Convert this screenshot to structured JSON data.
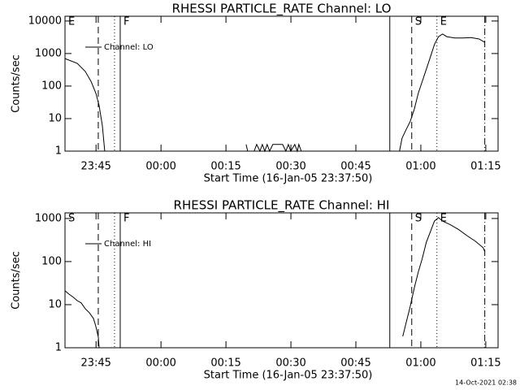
{
  "chart_data": [
    {
      "type": "line",
      "title": "RHESSI PARTICLE_RATE Channel: LO",
      "xlabel": "Start Time (16-Jan-05 23:37:50)",
      "ylabel": "Counts/sec",
      "log_y": true,
      "xlim": [
        0,
        6000
      ],
      "ylim": [
        1,
        14000
      ],
      "yticks": [
        1,
        10,
        100,
        1000,
        10000
      ],
      "xticks": [
        {
          "value": 430,
          "label": "23:45"
        },
        {
          "value": 1330,
          "label": "00:00"
        },
        {
          "value": 2230,
          "label": "00:15"
        },
        {
          "value": 3130,
          "label": "00:30"
        },
        {
          "value": 4030,
          "label": "00:45"
        },
        {
          "value": 4930,
          "label": "01:00"
        },
        {
          "value": 5830,
          "label": "01:15"
        }
      ],
      "x": [
        0,
        169,
        281,
        360,
        428,
        473,
        518,
        551,
        1500,
        2509,
        2531,
        2621,
        2655,
        2700,
        2734,
        2768,
        2801,
        2835,
        2880,
        2925,
        2970,
        3015,
        3060,
        3094,
        3128,
        3184,
        3218,
        3240,
        3274,
        4000,
        4635,
        4669,
        4725,
        4781,
        4838,
        4894,
        4950,
        5006,
        5063,
        5119,
        5175,
        5231,
        5288,
        5400,
        5513,
        5625,
        5738,
        5816
      ],
      "series": [
        {
          "name": "Channel: LO",
          "color": "#000000",
          "values": [
            700,
            500,
            280,
            140,
            60,
            25,
            6,
            1,
            null,
            1.6,
            1,
            1,
            1.6,
            1,
            1.6,
            1,
            1.6,
            1,
            1.6,
            1.6,
            1.6,
            1.6,
            1,
            1.6,
            1,
            1.6,
            1,
            1.6,
            1,
            null,
            1,
            2.5,
            4.5,
            8,
            19,
            60,
            140,
            330,
            800,
            1900,
            3300,
            4000,
            3300,
            3000,
            3000,
            3100,
            2800,
            2200
          ]
        }
      ],
      "markers": [
        {
          "x": 461,
          "style": "dashed"
        },
        {
          "x": 686,
          "style": "dotted"
        },
        {
          "x": 765,
          "style": "solid"
        },
        {
          "x": 4500,
          "style": "solid"
        },
        {
          "x": 4804,
          "style": "dashed"
        },
        {
          "x": 5153,
          "style": "dotted"
        },
        {
          "x": 5816,
          "style": "dashdot"
        }
      ],
      "annotations": [
        {
          "text": "E",
          "x": 0
        },
        {
          "text": "F",
          "x": 765
        },
        {
          "text": "S",
          "x": 4804
        },
        {
          "text": "E",
          "x": 5153
        }
      ]
    },
    {
      "type": "line",
      "title": "RHESSI PARTICLE_RATE Channel: HI",
      "xlabel": "Start Time (16-Jan-05 23:37:50)",
      "ylabel": "Counts/sec",
      "log_y": true,
      "xlim": [
        0,
        6000
      ],
      "ylim": [
        1,
        1350
      ],
      "yticks": [
        1,
        10,
        100,
        1000
      ],
      "xticks": [
        {
          "value": 430,
          "label": "23:45"
        },
        {
          "value": 1330,
          "label": "00:00"
        },
        {
          "value": 2230,
          "label": "00:15"
        },
        {
          "value": 3130,
          "label": "00:30"
        },
        {
          "value": 4030,
          "label": "00:45"
        },
        {
          "value": 4930,
          "label": "01:00"
        },
        {
          "value": 5830,
          "label": "01:15"
        }
      ],
      "x": [
        0,
        56,
        113,
        169,
        225,
        281,
        338,
        394,
        428,
        461,
        473,
        2500,
        4680,
        4725,
        4781,
        4838,
        4894,
        4950,
        5006,
        5063,
        5119,
        5175,
        5231,
        5344,
        5456,
        5569,
        5681,
        5794,
        5816
      ],
      "series": [
        {
          "name": "Channel: HI",
          "color": "#000000",
          "values": [
            21,
            17.5,
            15,
            12.4,
            11,
            8,
            6.5,
            4.8,
            3.1,
            1.76,
            1,
            null,
            1.84,
            3.7,
            8.8,
            24,
            57,
            118,
            280,
            500,
            870,
            1050,
            870,
            710,
            550,
            400,
            300,
            210,
            170
          ]
        }
      ],
      "markers": [
        {
          "x": 461,
          "style": "dashed"
        },
        {
          "x": 686,
          "style": "dotted"
        },
        {
          "x": 765,
          "style": "solid"
        },
        {
          "x": 4500,
          "style": "solid"
        },
        {
          "x": 4804,
          "style": "dashed"
        },
        {
          "x": 5153,
          "style": "dotted"
        },
        {
          "x": 5816,
          "style": "dashdot"
        }
      ],
      "annotations": [
        {
          "text": "S",
          "x": 0
        },
        {
          "text": "F",
          "x": 765
        },
        {
          "text": "S",
          "x": 4804
        },
        {
          "text": "E",
          "x": 5153
        }
      ]
    }
  ],
  "footer": "14-Oct-2021 02:38"
}
